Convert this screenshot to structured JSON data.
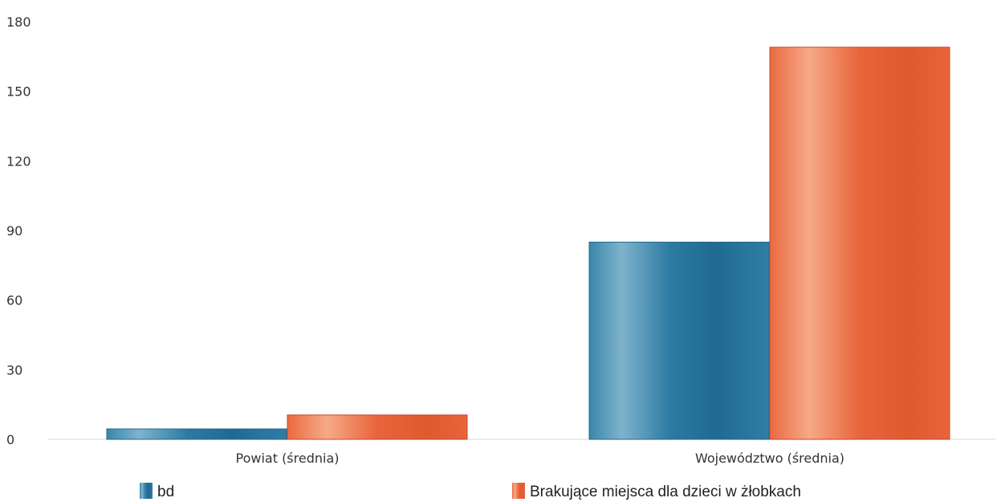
{
  "chart_data": {
    "type": "bar",
    "categories": [
      "Powiat (średnia)",
      "Województwo (średnia)"
    ],
    "series": [
      {
        "name": "bd",
        "values": [
          4.5,
          85
        ],
        "color": "#2f7ea6"
      },
      {
        "name": "Brakujące miejsca dla dzieci w żłobkach",
        "values": [
          10.5,
          169
        ],
        "color": "#e8643a"
      }
    ],
    "y_ticks": [
      0,
      30,
      60,
      90,
      120,
      150,
      180
    ],
    "ylim": [
      0,
      180
    ],
    "grid": false,
    "legend_position": "bottom"
  }
}
